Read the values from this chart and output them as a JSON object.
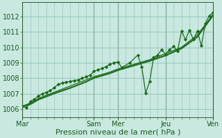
{
  "background_color": "#c8e8e0",
  "grid_color": "#90c0b8",
  "line_color": "#1a6b1a",
  "marker_color": "#1a6b1a",
  "xlabel": "Pression niveau de la mer( hPa )",
  "ylim": [
    1005.5,
    1012.9
  ],
  "yticks": [
    1006,
    1007,
    1008,
    1009,
    1010,
    1011,
    1012
  ],
  "day_labels": [
    "Mar",
    "Sam",
    "Mer",
    "Jeu",
    "Ven"
  ],
  "day_positions": [
    0,
    36,
    48,
    72,
    96
  ],
  "vline_positions": [
    0,
    36,
    48,
    72,
    96
  ],
  "trend1_x": [
    0,
    4,
    8,
    16,
    24,
    32,
    36,
    44,
    48,
    56,
    64,
    72,
    80,
    88,
    96
  ],
  "trend1_y": [
    1006.2,
    1006.4,
    1006.7,
    1007.1,
    1007.5,
    1007.9,
    1008.1,
    1008.4,
    1008.6,
    1008.9,
    1009.2,
    1009.6,
    1010.0,
    1010.8,
    1012.15
  ],
  "trend2_x": [
    0,
    4,
    8,
    16,
    24,
    32,
    36,
    44,
    48,
    56,
    64,
    72,
    80,
    88,
    96
  ],
  "trend2_y": [
    1006.2,
    1006.35,
    1006.65,
    1007.05,
    1007.4,
    1007.8,
    1008.05,
    1008.35,
    1008.55,
    1008.85,
    1009.15,
    1009.5,
    1009.95,
    1010.7,
    1012.1
  ],
  "trend3_x": [
    0,
    4,
    8,
    16,
    24,
    32,
    36,
    44,
    48,
    56,
    64,
    72,
    80,
    88,
    96
  ],
  "trend3_y": [
    1006.15,
    1006.3,
    1006.6,
    1007.0,
    1007.35,
    1007.75,
    1008.0,
    1008.3,
    1008.5,
    1008.8,
    1009.1,
    1009.45,
    1009.9,
    1010.65,
    1012.05
  ],
  "main_x": [
    0,
    2,
    4,
    6,
    8,
    10,
    12,
    14,
    16,
    18,
    20,
    22,
    24,
    26,
    28,
    30,
    32,
    34,
    36,
    38,
    40,
    42,
    44,
    46,
    48,
    50,
    54,
    58,
    60,
    62,
    64,
    66,
    68,
    70,
    72,
    74,
    76,
    78,
    80,
    82,
    84,
    86,
    88,
    90,
    92,
    94,
    96
  ],
  "main_y": [
    1006.2,
    1006.1,
    1006.5,
    1006.65,
    1006.85,
    1007.0,
    1007.1,
    1007.2,
    1007.4,
    1007.6,
    1007.7,
    1007.75,
    1007.8,
    1007.85,
    1007.9,
    1008.0,
    1008.1,
    1008.2,
    1008.45,
    1008.55,
    1008.65,
    1008.75,
    1008.9,
    1009.0,
    1009.05,
    1008.7,
    1009.0,
    1009.5,
    1008.75,
    1007.05,
    1007.8,
    1009.35,
    1009.5,
    1009.85,
    1009.55,
    1009.85,
    1010.05,
    1009.75,
    1011.05,
    1010.5,
    1011.1,
    1010.5,
    1011.05,
    1010.1,
    1011.55,
    1012.05,
    1012.25
  ],
  "font_size_label": 8,
  "font_size_tick": 7,
  "figw": 3.2,
  "figh": 2.0,
  "dpi": 100
}
